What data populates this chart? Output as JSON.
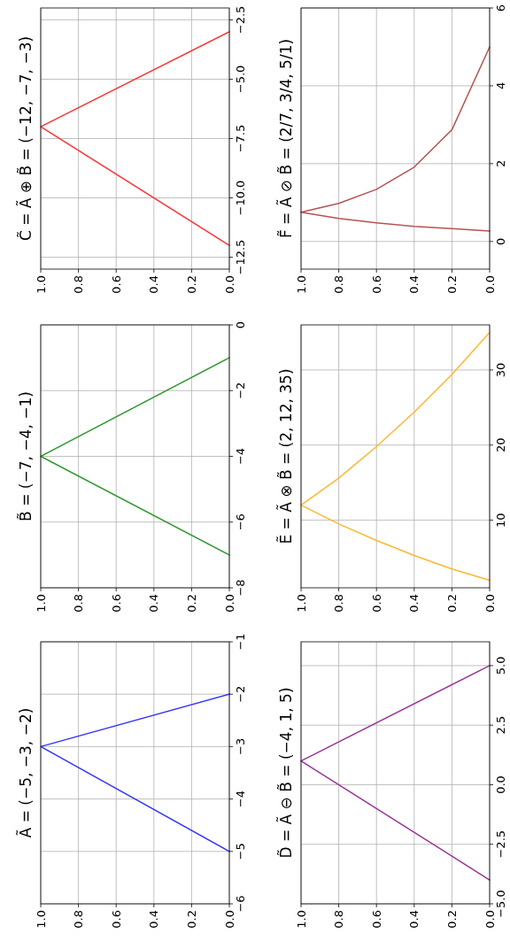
{
  "chart_data": [
    {
      "type": "line",
      "title": "Ã = (−5, −3, −2)",
      "x": [
        0,
        1,
        0
      ],
      "values": [
        -5,
        -3,
        -2
      ],
      "color": "#3333ff",
      "ylim": [
        -6,
        -1
      ],
      "yticks": [
        {
          "value": -6,
          "label": "−6"
        },
        {
          "value": -5,
          "label": "−5"
        },
        {
          "value": -4,
          "label": "−4"
        },
        {
          "value": -3,
          "label": "−3"
        },
        {
          "value": -2,
          "label": "−2"
        },
        {
          "value": -1,
          "label": "−1"
        }
      ],
      "xlim": [
        1,
        0
      ],
      "xticks": [
        {
          "value": 1,
          "label": "1.0"
        },
        {
          "value": 0.8,
          "label": "0.8"
        },
        {
          "value": 0.6,
          "label": "0.6"
        },
        {
          "value": 0.4,
          "label": "0.4"
        },
        {
          "value": 0.2,
          "label": "0.2"
        },
        {
          "value": 0,
          "label": "0.0"
        }
      ],
      "grid": true
    },
    {
      "type": "line",
      "title": "B̃ = (−7, −4, −1)",
      "x": [
        0,
        1,
        0
      ],
      "values": [
        -7,
        -4,
        -1
      ],
      "color": "#339933",
      "ylim": [
        -8,
        0
      ],
      "yticks": [
        {
          "value": -8,
          "label": "−8"
        },
        {
          "value": -6,
          "label": "−6"
        },
        {
          "value": -4,
          "label": "−4"
        },
        {
          "value": -2,
          "label": "−2"
        },
        0
      ],
      "xlim": [
        1,
        0
      ],
      "xticks": [
        {
          "value": 1,
          "label": "1.0"
        },
        {
          "value": 0.8,
          "label": "0.8"
        },
        {
          "value": 0.6,
          "label": "0.6"
        },
        {
          "value": 0.4,
          "label": "0.4"
        },
        {
          "value": 0.2,
          "label": "0.2"
        },
        {
          "value": 0,
          "label": "0.0"
        }
      ],
      "grid": true
    },
    {
      "type": "line",
      "title": "C̃ = Ã ⊕ B̃ = (−12, −7, −3)",
      "x": [
        0,
        1,
        0
      ],
      "values": [
        -12,
        -7,
        -3
      ],
      "color": "#ff3333",
      "ylim": [
        -13,
        -2
      ],
      "yticks": [
        {
          "value": -12.5,
          "label": "−12.5"
        },
        {
          "value": -10,
          "label": "−10.0"
        },
        {
          "value": -7.5,
          "label": "−7.5"
        },
        {
          "value": -5,
          "label": "−5.0"
        },
        {
          "value": -2.5,
          "label": "−2.5"
        }
      ],
      "xlim": [
        1,
        0
      ],
      "xticks": [
        {
          "value": 1,
          "label": "1.0"
        },
        {
          "value": 0.8,
          "label": "0.8"
        },
        {
          "value": 0.6,
          "label": "0.6"
        },
        {
          "value": 0.4,
          "label": "0.4"
        },
        {
          "value": 0.2,
          "label": "0.2"
        },
        {
          "value": 0,
          "label": "0.0"
        }
      ],
      "grid": true
    },
    {
      "type": "line",
      "title": "D̃ = Ã ⊖ B̃ = (−4, 1, 5)",
      "x": [
        0,
        1,
        0
      ],
      "values": [
        -4,
        1,
        5
      ],
      "color": "#993399",
      "ylim": [
        -5,
        6
      ],
      "yticks": [
        {
          "value": -5,
          "label": "−5.0"
        },
        {
          "value": -2.5,
          "label": "−2.5"
        },
        {
          "value": 0,
          "label": "0.0"
        },
        {
          "value": 2.5,
          "label": "2.5"
        },
        {
          "value": 5,
          "label": "5.0"
        }
      ],
      "xlim": [
        1,
        0
      ],
      "xticks": [
        {
          "value": 1,
          "label": "1.0"
        },
        {
          "value": 0.8,
          "label": "0.8"
        },
        {
          "value": 0.6,
          "label": "0.6"
        },
        {
          "value": 0.4,
          "label": "0.4"
        },
        {
          "value": 0.2,
          "label": "0.2"
        },
        {
          "value": 0,
          "label": "0.0"
        }
      ],
      "grid": true
    },
    {
      "type": "line",
      "title": "Ẽ = Ã ⊗ B̃ = (2, 12, 35)",
      "x": [
        0,
        0.2,
        0.4,
        0.6,
        0.8,
        1,
        0.8,
        0.6,
        0.4,
        0.2,
        0
      ],
      "values": [
        2,
        3.5,
        5.3,
        7.3,
        9.5,
        12,
        15.6,
        19.8,
        24.4,
        29.4,
        35
      ],
      "color": "#ffb733",
      "ylim": [
        1,
        36
      ],
      "yticks": [
        10,
        20,
        30
      ],
      "xlim": [
        1,
        0
      ],
      "xticks": [
        {
          "value": 1,
          "label": "1.0"
        },
        {
          "value": 0.8,
          "label": "0.8"
        },
        {
          "value": 0.6,
          "label": "0.6"
        },
        {
          "value": 0.4,
          "label": "0.4"
        },
        {
          "value": 0.2,
          "label": "0.2"
        },
        {
          "value": 0,
          "label": "0.0"
        }
      ],
      "grid": true
    },
    {
      "type": "line",
      "title": "F̃ = Ã ⊘ B̃ = (2/7, 3/4, 5/1)",
      "x": [
        0,
        0.2,
        0.4,
        0.6,
        0.8,
        1,
        0.8,
        0.6,
        0.4,
        0.2,
        0
      ],
      "values": [
        0.27,
        0.33,
        0.39,
        0.48,
        0.59,
        0.75,
        0.98,
        1.34,
        1.91,
        2.87,
        5
      ],
      "color": "#b55252",
      "ylim": [
        -0.71,
        6
      ],
      "yticks": [
        0,
        2,
        4,
        6
      ],
      "xlim": [
        1,
        0
      ],
      "xticks": [
        {
          "value": 1,
          "label": "1.0"
        },
        {
          "value": 0.8,
          "label": "0.8"
        },
        {
          "value": 0.6,
          "label": "0.6"
        },
        {
          "value": 0.4,
          "label": "0.4"
        },
        {
          "value": 0.2,
          "label": "0.2"
        },
        {
          "value": 0,
          "label": "0.0"
        }
      ],
      "grid": true
    }
  ]
}
